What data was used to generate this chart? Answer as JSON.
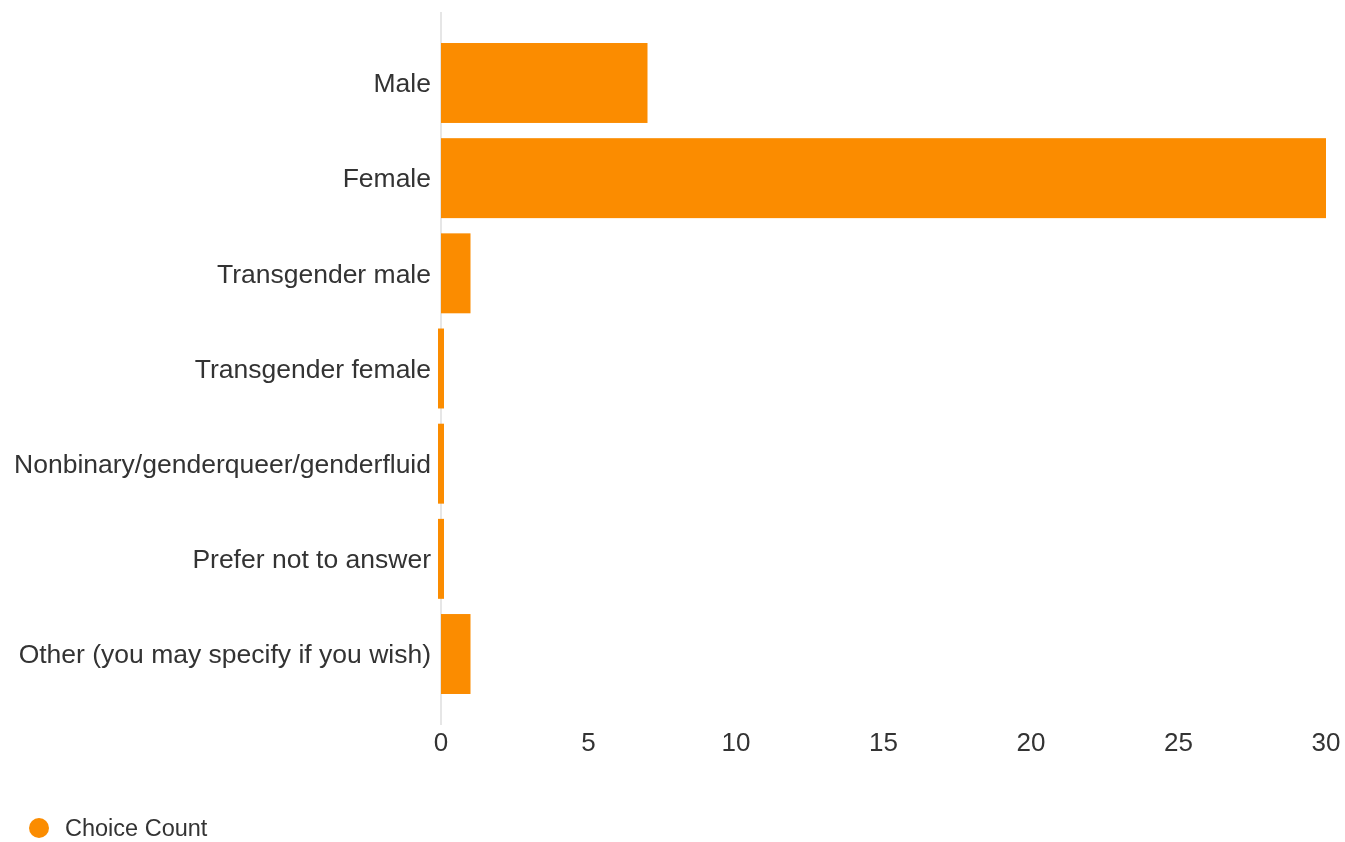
{
  "chart_data": {
    "type": "bar",
    "orientation": "horizontal",
    "categories": [
      "Male",
      "Female",
      "Transgender male",
      "Transgender female",
      "Nonbinary/genderqueer/genderfluid",
      "Prefer not to answer",
      "Other (you may specify if you wish)"
    ],
    "series": [
      {
        "name": "Choice Count",
        "color": "#fb8c00",
        "values": [
          7,
          30,
          1,
          0,
          0,
          0,
          1
        ]
      }
    ],
    "xlim": [
      0,
      30
    ],
    "xticks": [
      0,
      5,
      10,
      15,
      20,
      25,
      30
    ],
    "legend": "bottom left"
  }
}
